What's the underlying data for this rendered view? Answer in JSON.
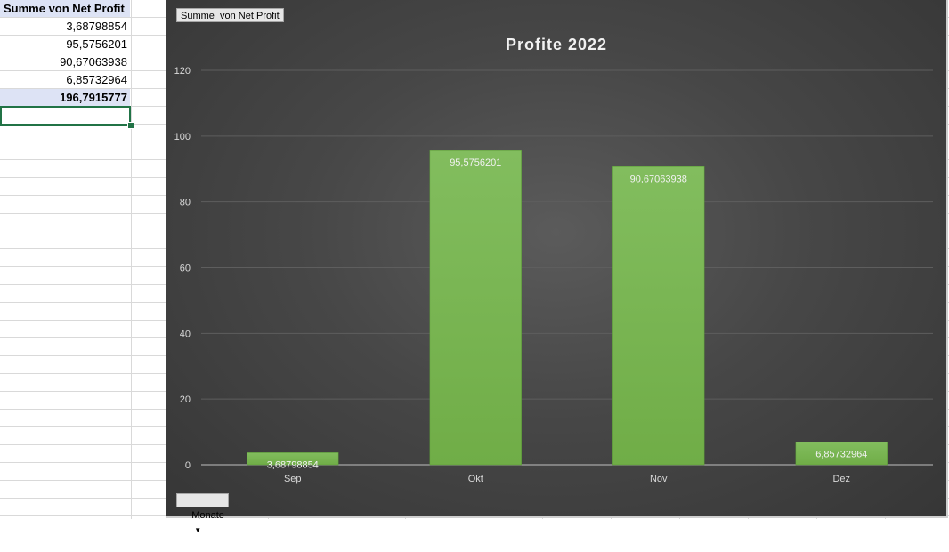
{
  "sheet": {
    "header": "Summe von Net Profit",
    "values": [
      "3,68798854",
      "95,5756201",
      "90,67063938",
      "6,85732964"
    ],
    "total": "196,7915777"
  },
  "chart_fields": {
    "value_field": "Summe  von Net Profit",
    "axis_field": "Monate",
    "dropdown_glyph": "▼"
  },
  "chart_data": {
    "type": "bar",
    "title": "Profite 2022",
    "categories": [
      "Sep",
      "Okt",
      "Nov",
      "Dez"
    ],
    "values": [
      3.68798854,
      95.5756201,
      90.67063938,
      6.85732964
    ],
    "data_labels": [
      "3,68798854",
      "95,5756201",
      "90,67063938",
      "6,85732964"
    ],
    "ylim": [
      0,
      120
    ],
    "yticks": [
      0,
      20,
      40,
      60,
      80,
      100,
      120
    ],
    "grid": true,
    "bar_color": "#70ad47"
  }
}
